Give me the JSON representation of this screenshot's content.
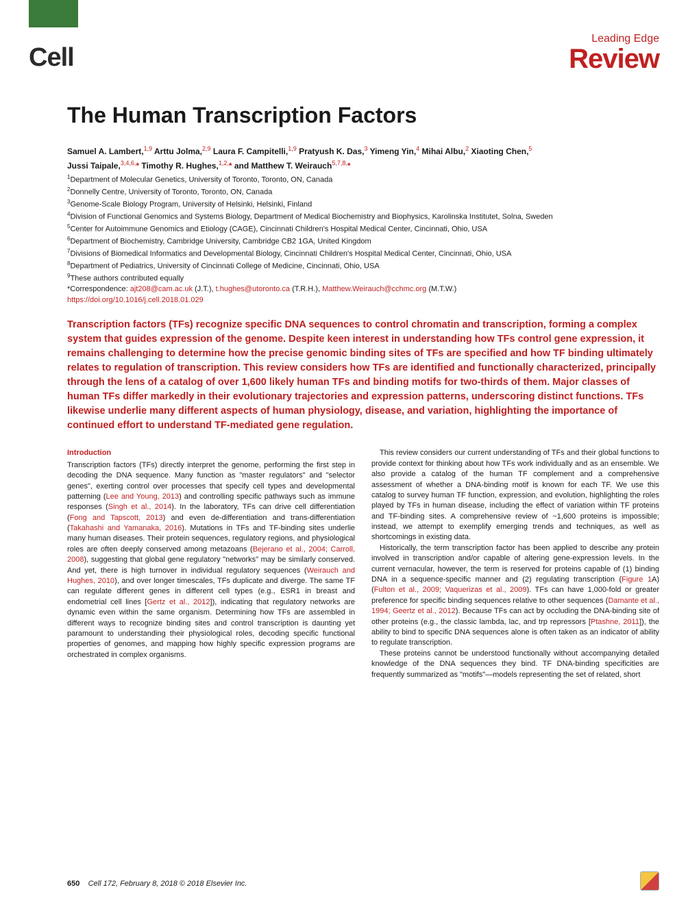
{
  "header": {
    "logo": "Cell",
    "leading_edge": "Leading Edge",
    "section": "Review",
    "green_bar_color": "#3a7a3a",
    "accent_color": "#c02020"
  },
  "title": "The Human Transcription Factors",
  "authors_line1_html": "Samuel A. Lambert,<sup>1,9</sup> Arttu Jolma,<sup>2,9</sup> Laura F. Campitelli,<sup>1,9</sup> Pratyush K. Das,<sup>3</sup> Yimeng Yin,<sup>4</sup> Mihai Albu,<sup>2</sup> Xiaoting Chen,<sup>5</sup>",
  "authors_line2_html": "Jussi Taipale,<sup>3,4,6,</sup><span class=\"star\">*</span> Timothy R. Hughes,<sup>1,2,</sup><span class=\"star\">*</span> and Matthew T. Weirauch<sup>5,7,8,</sup><span class=\"star\">*</span>",
  "affiliations": [
    "<sup>1</sup>Department of Molecular Genetics, University of Toronto, Toronto, ON, Canada",
    "<sup>2</sup>Donnelly Centre, University of Toronto, Toronto, ON, Canada",
    "<sup>3</sup>Genome-Scale Biology Program, University of Helsinki, Helsinki, Finland",
    "<sup>4</sup>Division of Functional Genomics and Systems Biology, Department of Medical Biochemistry and Biophysics, Karolinska Institutet, Solna, Sweden",
    "<sup>5</sup>Center for Autoimmune Genomics and Etiology (CAGE), Cincinnati Children's Hospital Medical Center, Cincinnati, Ohio, USA",
    "<sup>6</sup>Department of Biochemistry, Cambridge University, Cambridge CB2 1GA, United Kingdom",
    "<sup>7</sup>Divisions of Biomedical Informatics and Developmental Biology, Cincinnati Children's Hospital Medical Center, Cincinnati, Ohio, USA",
    "<sup>8</sup>Department of Pediatrics, University of Cincinnati College of Medicine, Cincinnati, Ohio, USA",
    "<sup>9</sup>These authors contributed equally"
  ],
  "correspondence_html": "*Correspondence: <span class=\"link\">ajt208@cam.ac.uk</span> (J.T.), <span class=\"link\">t.hughes@utoronto.ca</span> (T.R.H.), <span class=\"link\">Matthew.Weirauch@cchmc.org</span> (M.T.W.)",
  "doi_html": "<span class=\"link\">https://doi.org/10.1016/j.cell.2018.01.029</span>",
  "abstract": "Transcription factors (TFs) recognize specific DNA sequences to control chromatin and transcription, forming a complex system that guides expression of the genome. Despite keen interest in understanding how TFs control gene expression, it remains challenging to determine how the precise genomic binding sites of TFs are specified and how TF binding ultimately relates to regulation of transcription. This review considers how TFs are identified and functionally characterized, principally through the lens of a catalog of over 1,600 likely human TFs and binding motifs for two-thirds of them. Major classes of human TFs differ markedly in their evolutionary trajectories and expression patterns, underscoring distinct functions. TFs likewise underlie many different aspects of human physiology, disease, and variation, highlighting the importance of continued effort to understand TF-mediated gene regulation.",
  "body": {
    "intro_heading": "Introduction",
    "para1_html": "Transcription factors (TFs) directly interpret the genome, performing the first step in decoding the DNA sequence. Many function as \"master regulators\" and \"selector genes\", exerting control over processes that specify cell types and developmental patterning (<span class=\"ref\">Lee and Young, 2013</span>) and controlling specific pathways such as immune responses (<span class=\"ref\">Singh et al., 2014</span>). In the laboratory, TFs can drive cell differentiation (<span class=\"ref\">Fong and Tapscott, 2013</span>) and even de-differentiation and trans-differentiation (<span class=\"ref\">Takahashi and Yamanaka, 2016</span>). Mutations in TFs and TF-binding sites underlie many human diseases. Their protein sequences, regulatory regions, and physiological roles are often deeply conserved among metazoans (<span class=\"ref\">Bejerano et al., 2004; Carroll, 2008</span>), suggesting that global gene regulatory \"networks\" may be similarly conserved. And yet, there is high turnover in individual regulatory sequences (<span class=\"ref\">Weirauch and Hughes, 2010</span>), and over longer timescales, TFs duplicate and diverge. The same TF can regulate different genes in different cell types (e.g., ESR1 in breast and endometrial cell lines [<span class=\"ref\">Gertz et al., 2012</span>]), indicating that regulatory networks are dynamic even within the same organism. Determining how TFs are assembled in different ways to recognize binding sites and control transcription is daunting yet paramount to understanding their physiological roles, decoding specific functional properties of genomes, and mapping how highly specific expression programs are orchestrated in complex organisms.",
    "para2_html": "This review considers our current understanding of TFs and their global functions to provide context for thinking about how TFs work individually and as an ensemble. We also provide a catalog of the human TF complement and a comprehensive assessment of whether a DNA-binding motif is known for each TF. We use this catalog to survey human TF function, expression, and evolution, highlighting the roles played by TFs in human disease, including the effect of variation within TF proteins and TF-binding sites. A comprehensive review of ~1,600 proteins is impossible; instead, we attempt to exemplify emerging trends and techniques, as well as shortcomings in existing data.",
    "para3_html": "Historically, the term transcription factor has been applied to describe any protein involved in transcription and/or capable of altering gene-expression levels. In the current vernacular, however, the term is reserved for proteins capable of (1) binding DNA in a sequence-specific manner and (2) regulating transcription (<span class=\"ref\">Figure 1</span>A) (<span class=\"ref\">Fulton et al., 2009; Vaquerizas et al., 2009</span>). TFs can have 1,000-fold or greater preference for specific binding sequences relative to other sequences (<span class=\"ref\">Damante et al., 1994; Geertz et al., 2012</span>). Because TFs can act by occluding the DNA-binding site of other proteins (e.g., the classic lambda, lac, and trp repressors [<span class=\"ref\">Ptashne, 2011</span>]), the ability to bind to specific DNA sequences alone is often taken as an indicator of ability to regulate transcription.",
    "para4_html": "These proteins cannot be understood functionally without accompanying detailed knowledge of the DNA sequences they bind. TF DNA-binding specificities are frequently summarized as \"motifs\"—models representing the set of related, short"
  },
  "footer": {
    "page": "650",
    "citation": "Cell 172, February 8, 2018 © 2018 Elsevier Inc."
  }
}
